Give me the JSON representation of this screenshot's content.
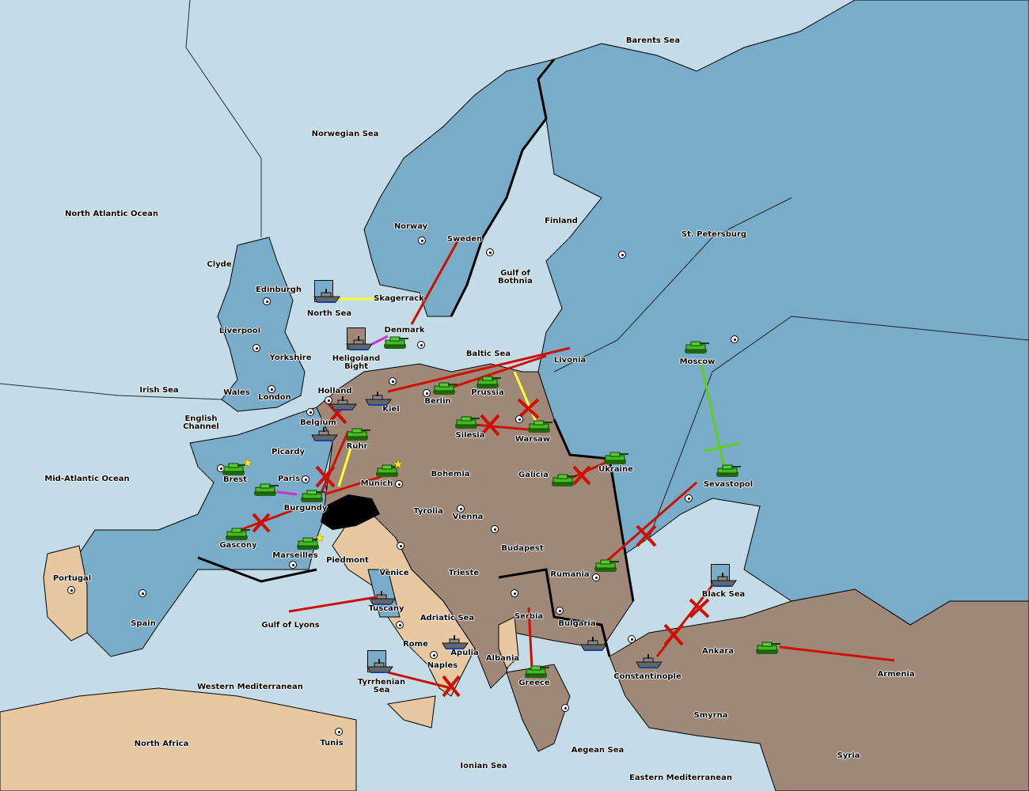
{
  "map": {
    "colors": {
      "sea": "#c4dce8",
      "blue_power": "#78acc8",
      "brown_power": "#a08878",
      "neutral": "#e8c8a0",
      "move_order": "#cc1100",
      "support_order": "#ffff33",
      "convoy_order": "#cc33cc",
      "hold_support": "#66cc22"
    },
    "labels": [
      "Barents Sea",
      "Norwegian Sea",
      "North Atlantic Ocean",
      "Finland",
      "St. Petersburg",
      "Norway",
      "Sweden",
      "Clyde",
      "Gulf of Bothnia",
      "Edinburgh",
      "Skagerrack",
      "North Sea",
      "Liverpool",
      "Denmark",
      "Yorkshire",
      "Heligoland Bight",
      "Baltic Sea",
      "Livonia",
      "Moscow",
      "Irish Sea",
      "Wales",
      "Holland",
      "Prussia",
      "London",
      "Berlin",
      "Kiel",
      "English Channel",
      "Belgium",
      "Silesia",
      "Warsaw",
      "Ruhr",
      "Picardy",
      "Ukraine",
      "Galicia",
      "Bohemia",
      "Mid-Atlantic Ocean",
      "Brest",
      "Paris",
      "Munich",
      "Sevastopol",
      "Burgundy",
      "Tyrolia",
      "Vienna",
      "Gascony",
      "Budapest",
      "Marseilles",
      "Piedmont",
      "Portugal",
      "Venice",
      "Trieste",
      "Rumania",
      "Black Sea",
      "Tuscany",
      "Adriatic Sea",
      "Serbia",
      "Spain",
      "Gulf of Lyons",
      "Bulgaria",
      "Rome",
      "Apulia",
      "Ankara",
      "Albania",
      "Naples",
      "Armenia",
      "Constantinople",
      "Greece",
      "Tyrrhenian Sea",
      "Western Mediterranean",
      "Smyrna",
      "North Africa",
      "Tunis",
      "Aegean Sea",
      "Syria",
      "Ionian Sea",
      "Eastern Mediterranean"
    ],
    "armies": [
      "Moscow",
      "Sevastopol",
      "Ukraine",
      "Galicia",
      "Warsaw",
      "Prussia",
      "Berlin",
      "Silesia",
      "Denmark",
      "Ruhr",
      "Munich",
      "Burgundy",
      "Paris",
      "Brest",
      "Gascony",
      "Marseilles",
      "Rumania",
      "Greece",
      "Ankara"
    ],
    "fleets": [
      "North Sea",
      "Heligoland Bight",
      "Kiel",
      "Holland",
      "Belgium",
      "Tuscany",
      "Apulia",
      "Tyrrhenian Sea",
      "Black Sea",
      "Bulgaria",
      "Constantinople"
    ],
    "icons": {
      "army": "tank-icon",
      "fleet": "battleship-icon",
      "supply_center": "supply-center-icon",
      "build": "star-icon",
      "failed": "red-x-icon"
    }
  }
}
